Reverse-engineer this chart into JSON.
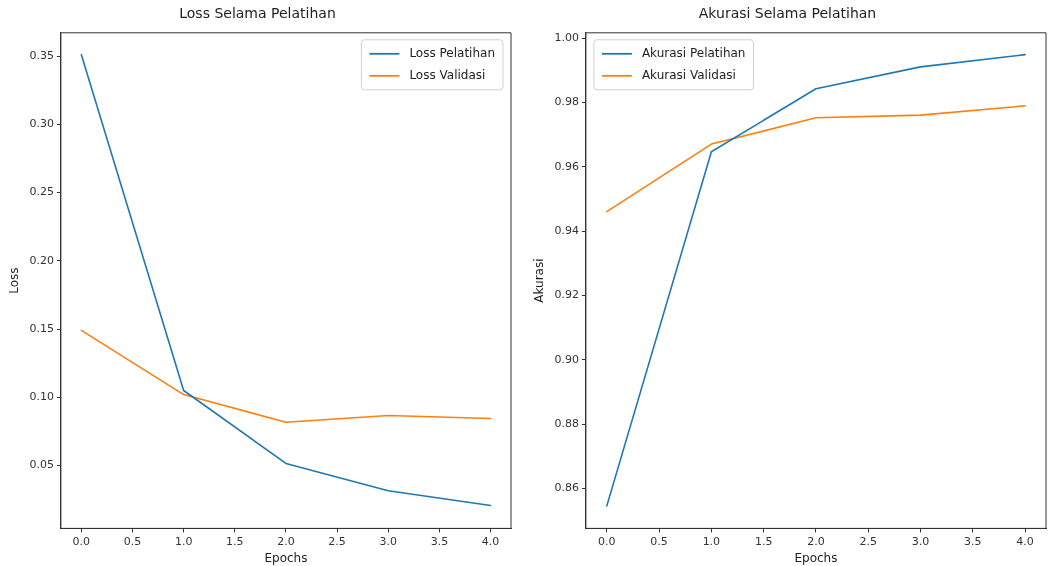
{
  "chart_data": [
    {
      "type": "line",
      "title": "Loss Selama Pelatihan",
      "xlabel": "Epochs",
      "ylabel": "Loss",
      "x": [
        0,
        1,
        2,
        3,
        4
      ],
      "series": [
        {
          "name": "Loss Pelatihan",
          "color": "#1f77b4",
          "values": [
            0.351,
            0.105,
            0.0516,
            0.0316,
            0.0208
          ]
        },
        {
          "name": "Loss Validasi",
          "color": "#ff7f0e",
          "values": [
            0.149,
            0.102,
            0.0818,
            0.0867,
            0.0845
          ]
        }
      ],
      "xlim": [
        -0.2,
        4.2
      ],
      "xticks": [
        {
          "value": 0,
          "label": "0.0"
        },
        {
          "value": 0.5,
          "label": "0.5"
        },
        {
          "value": 1,
          "label": "1.0"
        },
        {
          "value": 1.5,
          "label": "1.5"
        },
        {
          "value": 2,
          "label": "2.0"
        },
        {
          "value": 2.5,
          "label": "2.5"
        },
        {
          "value": 3,
          "label": "3.0"
        },
        {
          "value": 3.5,
          "label": "3.5"
        },
        {
          "value": 4,
          "label": "4.0"
        }
      ],
      "ylim": [
        0.004,
        0.367
      ],
      "yticks": [
        {
          "value": 0.05,
          "label": "0.05"
        },
        {
          "value": 0.1,
          "label": "0.10"
        },
        {
          "value": 0.15,
          "label": "0.15"
        },
        {
          "value": 0.2,
          "label": "0.20"
        },
        {
          "value": 0.25,
          "label": "0.25"
        },
        {
          "value": 0.3,
          "label": "0.30"
        },
        {
          "value": 0.35,
          "label": "0.35"
        }
      ],
      "grid": false,
      "legend": "top right",
      "marker": "none",
      "line_style": "solid"
    },
    {
      "type": "line",
      "title": "Akurasi Selama Pelatihan",
      "xlabel": "Epochs",
      "ylabel": "Akurasi",
      "x": [
        0,
        1,
        2,
        3,
        4
      ],
      "series": [
        {
          "name": "Akurasi Pelatihan",
          "color": "#1f77b4",
          "values": [
            0.8546,
            0.9647,
            0.9843,
            0.9911,
            0.9949
          ]
        },
        {
          "name": "Akurasi Validasi",
          "color": "#ff7f0e",
          "values": [
            0.9461,
            0.9671,
            0.9753,
            0.9761,
            0.979
          ]
        }
      ],
      "xlim": [
        -0.2,
        4.2
      ],
      "xticks": [
        {
          "value": 0,
          "label": "0.0"
        },
        {
          "value": 0.5,
          "label": "0.5"
        },
        {
          "value": 1,
          "label": "1.0"
        },
        {
          "value": 1.5,
          "label": "1.5"
        },
        {
          "value": 2,
          "label": "2.0"
        },
        {
          "value": 2.5,
          "label": "2.5"
        },
        {
          "value": 3,
          "label": "3.0"
        },
        {
          "value": 3.5,
          "label": "3.5"
        },
        {
          "value": 4,
          "label": "4.0"
        }
      ],
      "ylim": [
        0.8476,
        1.0017
      ],
      "yticks": [
        {
          "value": 0.86,
          "label": "0.86"
        },
        {
          "value": 0.88,
          "label": "0.88"
        },
        {
          "value": 0.9,
          "label": "0.90"
        },
        {
          "value": 0.92,
          "label": "0.92"
        },
        {
          "value": 0.94,
          "label": "0.94"
        },
        {
          "value": 0.96,
          "label": "0.96"
        },
        {
          "value": 0.98,
          "label": "0.98"
        },
        {
          "value": 1.0,
          "label": "1.00"
        }
      ],
      "grid": false,
      "legend": "top left",
      "marker": "none",
      "line_style": "solid"
    }
  ]
}
